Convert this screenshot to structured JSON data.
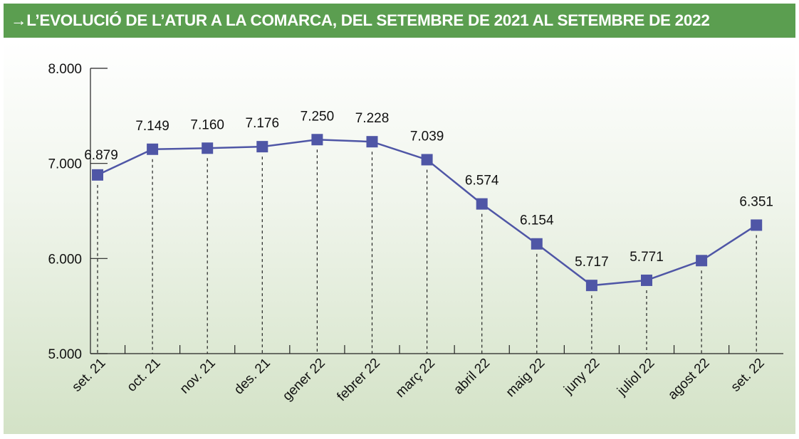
{
  "header": {
    "arrow": "→",
    "title": "L’EVOLUCIÓ DE L’ATUR A LA COMARCA, DEL SETEMBRE DE 2021 AL SETEMBRE DE 2022"
  },
  "colors": {
    "header_bg": "#5b9e50",
    "line": "#4f56a6",
    "marker": "#4f56a6"
  },
  "chart_data": {
    "type": "line",
    "title": "L’EVOLUCIÓ DE L’ATUR A LA COMARCA, DEL SETEMBRE DE 2021 AL SETEMBRE DE 2022",
    "xlabel": "",
    "ylabel": "",
    "categories": [
      "set. 21",
      "oct. 21",
      "nov. 21",
      "des. 21",
      "gener 22",
      "febrer 22",
      "març 22",
      "abril 22",
      "maig 22",
      "juny 22",
      "juliol 22",
      "agost 22",
      "set. 22"
    ],
    "values": [
      6879,
      7149,
      7160,
      7176,
      7250,
      7228,
      7039,
      6574,
      6154,
      5717,
      5771,
      5978,
      6351
    ],
    "data_labels": [
      "6.879",
      "7.149",
      "7.160",
      "7.176",
      "7.250",
      "7.228",
      "7.039",
      "6.574",
      "6.154",
      "5.717",
      "5.771",
      "",
      "6.351"
    ],
    "ylim": [
      5000,
      8000
    ],
    "yticks": [
      5000,
      6000,
      7000,
      8000
    ],
    "ytick_labels": [
      "5.000",
      "6.000",
      "7.000",
      "8.000"
    ],
    "grid": false,
    "legend": "none"
  }
}
